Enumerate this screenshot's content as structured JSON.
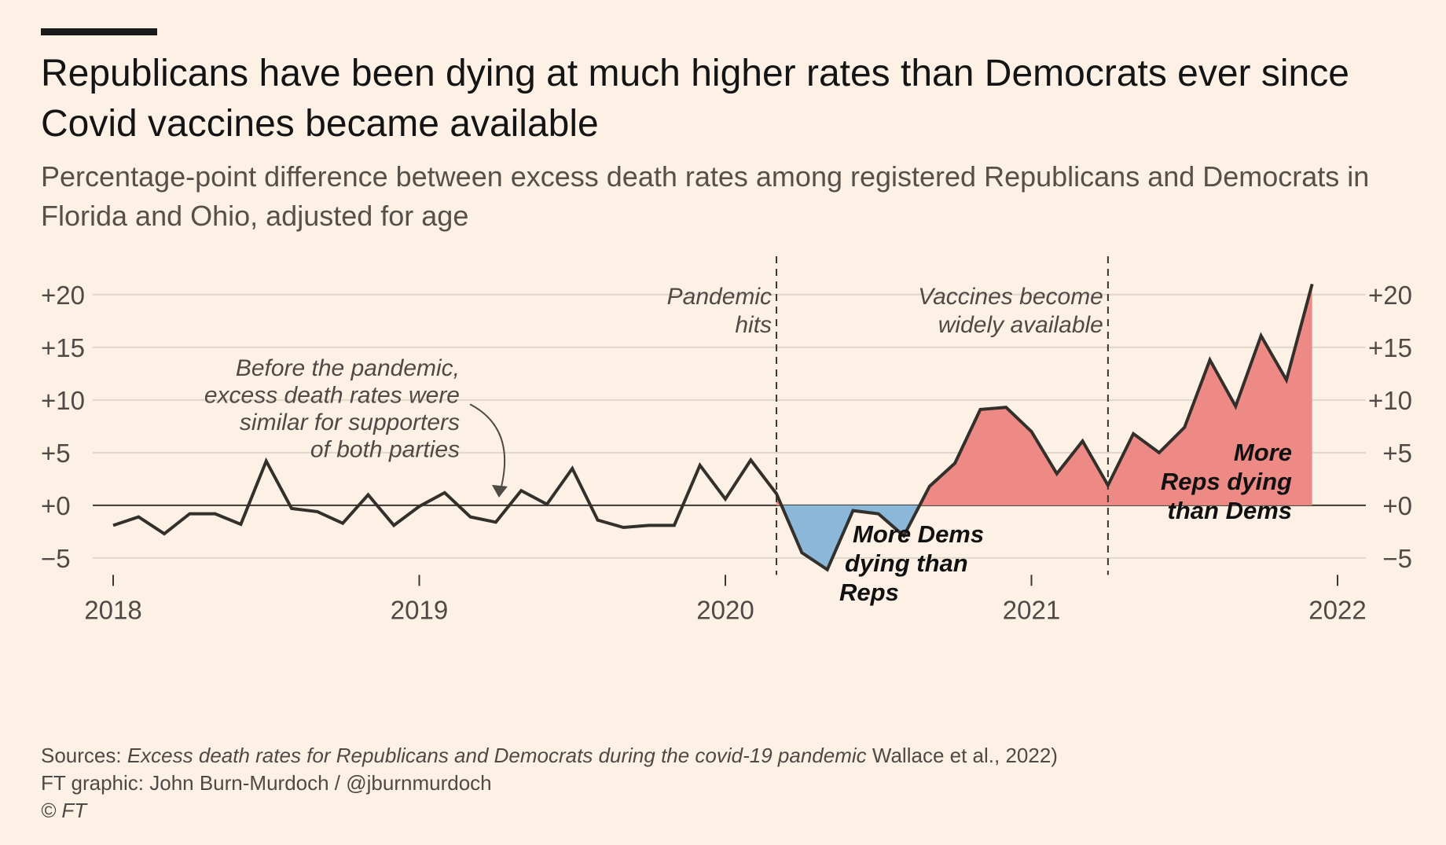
{
  "title": "Republicans have been dying at much higher rates than Democrats ever since Covid vaccines became available",
  "subtitle": "Percentage-point difference between excess death rates among registered Republicans and Democrats in Florida and Ohio, adjusted for age",
  "footer": {
    "sources_prefix": "Sources: ",
    "sources_italic": "Excess death rates for Republicans and Democrats during the covid-19 pandemic",
    "sources_suffix": " Wallace et al., 2022)",
    "credit": "FT graphic: John Burn-Murdoch / @jburnmurdoch",
    "copyright": "© FT"
  },
  "colors": {
    "background": "#fdf1e6",
    "line": "#33302b",
    "positive_fill": "#ee8a86",
    "negative_fill": "#8bb8d8",
    "grid": "#e0d6cb"
  },
  "chart_data": {
    "type": "area",
    "x_unit": "year",
    "xlim": [
      2018,
      2022
    ],
    "ylim": [
      -6.5,
      22
    ],
    "ytick_values": [
      -5,
      0,
      5,
      10,
      15,
      20
    ],
    "ytick_labels": [
      "−5",
      "+0",
      "+5",
      "+10",
      "+15",
      "+20"
    ],
    "xtick_values": [
      2018,
      2019,
      2020,
      2021,
      2022
    ],
    "xtick_labels": [
      "2018",
      "2019",
      "2020",
      "2021",
      "2022"
    ],
    "grid": true,
    "axis_labels_both_sides": true,
    "series": [
      {
        "fill_positive": true,
        "fill_negative": true,
        "x": [
          2018.0,
          2018.083,
          2018.167,
          2018.25,
          2018.333,
          2018.417,
          2018.5,
          2018.583,
          2018.667,
          2018.75,
          2018.833,
          2018.917,
          2019.0,
          2019.083,
          2019.167,
          2019.25,
          2019.333,
          2019.417,
          2019.5,
          2019.583,
          2019.667,
          2019.75,
          2019.833,
          2019.917,
          2020.0,
          2020.083,
          2020.167,
          2020.25,
          2020.333,
          2020.417,
          2020.5,
          2020.583,
          2020.667,
          2020.75,
          2020.833,
          2020.917,
          2021.0,
          2021.083,
          2021.167,
          2021.25,
          2021.333,
          2021.417,
          2021.5,
          2021.583,
          2021.667,
          2021.75,
          2021.833,
          2021.917
        ],
        "y": [
          -1.9,
          -1.1,
          -2.7,
          -0.8,
          -0.8,
          -1.8,
          4.2,
          -0.3,
          -0.6,
          -1.7,
          1.0,
          -1.9,
          -0.1,
          1.2,
          -1.1,
          -1.6,
          1.4,
          0.1,
          3.5,
          -1.4,
          -2.1,
          -1.9,
          -1.9,
          3.8,
          0.6,
          4.3,
          1.1,
          -4.5,
          -6.1,
          -0.5,
          -0.8,
          -2.9,
          1.8,
          4.0,
          9.1,
          9.3,
          7.0,
          3.0,
          6.1,
          1.9,
          6.8,
          5.0,
          7.4,
          13.8,
          9.4,
          16.1,
          11.9,
          21.0
        ]
      }
    ],
    "vlines": [
      {
        "x": 2020.167,
        "label": [
          "Pandemic",
          "hits"
        ]
      },
      {
        "x": 2021.25,
        "label": [
          "Vaccines become",
          "widely available"
        ]
      }
    ],
    "annotations": [
      {
        "lines": [
          "Before the pandemic,",
          "excess death rates were",
          "similar for supporters",
          "of both parties"
        ],
        "arrow_to_x": 2019.25,
        "arrow_to_y": 0.3
      },
      {
        "lines": [
          "More Dems",
          "dying than",
          "Reps"
        ]
      },
      {
        "lines": [
          "More",
          "Reps dying",
          "than Dems"
        ]
      }
    ]
  }
}
